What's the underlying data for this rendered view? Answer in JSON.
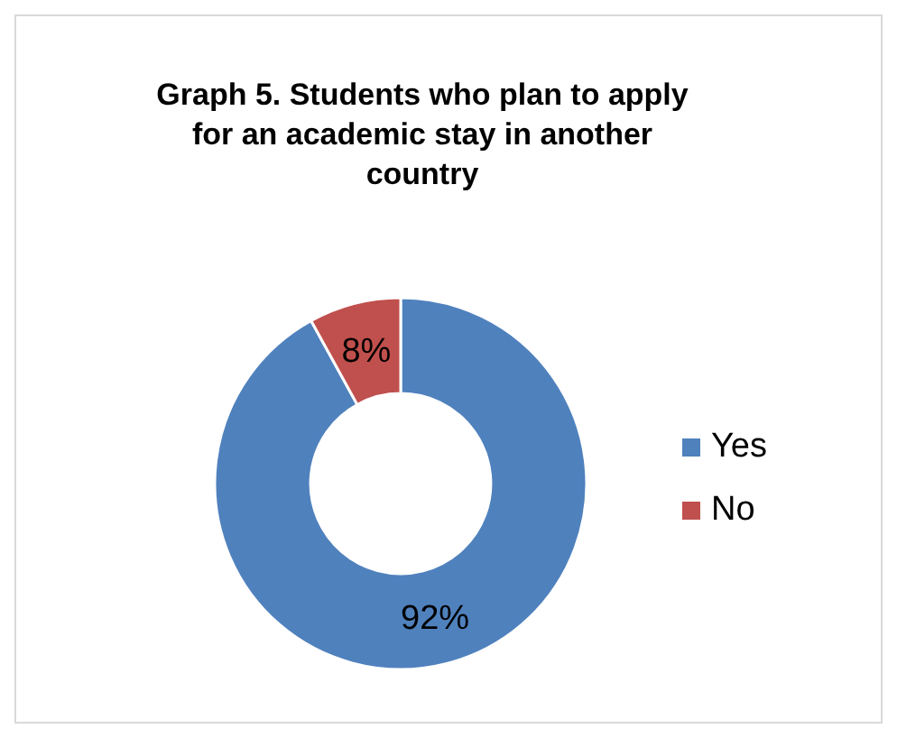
{
  "chart_data": {
    "type": "donut",
    "title": "Graph 5. Students who plan to apply for an academic stay in another country",
    "categories": [
      "Yes",
      "No"
    ],
    "values": [
      92,
      8
    ],
    "colors": [
      "#4f81bd",
      "#c0504d"
    ],
    "value_labels": [
      "92%",
      "8%"
    ],
    "legend": "right"
  }
}
